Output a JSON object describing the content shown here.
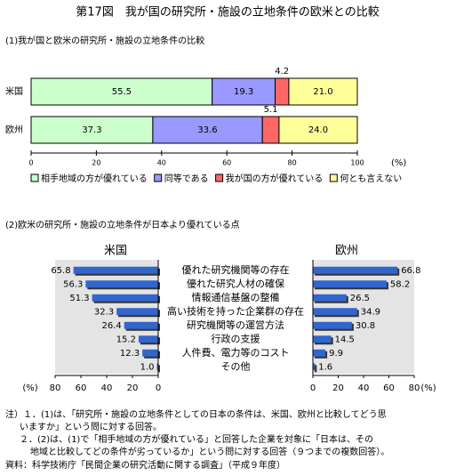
{
  "title": "第17図　我が国の研究所・施設の立地条件の欧米との比較",
  "chart_data": [
    {
      "type": "bar",
      "stacked": true,
      "orientation": "horizontal",
      "subtitle": "(1)我が国と欧米の研究所・施設の立地条件の比較",
      "categories": [
        "米国",
        "欧州"
      ],
      "series": [
        {
          "name": "相手地域の方が優れている",
          "color": "#ccffcc",
          "values": [
            55.5,
            37.3
          ],
          "value_labels": [
            "55.5",
            "37.3"
          ]
        },
        {
          "name": "同等である",
          "color": "#9999ff",
          "values": [
            19.3,
            33.6
          ],
          "value_labels": [
            "19.3",
            "33.6"
          ]
        },
        {
          "name": "我が国の方が優れている",
          "color": "#ff6666",
          "values": [
            4.2,
            5.1
          ],
          "value_labels": [
            "4.2",
            "5.1"
          ]
        },
        {
          "name": "何とも言えない",
          "color": "#ffff99",
          "values": [
            21.0,
            24.0
          ],
          "value_labels": [
            "21.0",
            "24.0"
          ]
        }
      ],
      "xlim": [
        0,
        100
      ],
      "xticks": [
        0,
        20,
        40,
        60,
        80,
        100
      ],
      "x_label": "(%)"
    },
    {
      "type": "butterfly",
      "subtitle": "(2)欧米の研究所・施設の立地条件が日本より優れている点",
      "categories": [
        "優れた研究機関等の存在",
        "優れた研究人材の確保",
        "情報通信基盤の整備",
        "高い技術を持った企業群の存在",
        "研究機関等の運営方法",
        "行政の支援",
        "人件費、電力等のコスト",
        "その他"
      ],
      "series": [
        {
          "name": "米国",
          "color": "#3366cc",
          "reversed": true,
          "values": [
            65.8,
            56.3,
            51.3,
            32.3,
            26.4,
            15.2,
            12.3,
            1.0
          ],
          "value_labels": [
            "65.8",
            "56.3",
            "51.3",
            "32.3",
            "26.4",
            "15.2",
            "12.3",
            "1.0"
          ]
        },
        {
          "name": "欧州",
          "color": "#3366cc",
          "values": [
            66.8,
            58.2,
            26.5,
            34.9,
            30.8,
            14.5,
            9.9,
            1.6
          ],
          "value_labels": [
            "66.8",
            "58.2",
            "26.5",
            "34.9",
            "30.8",
            "14.5",
            "9.9",
            "1.6"
          ]
        }
      ],
      "xlim": [
        0,
        80
      ],
      "xticks": [
        0,
        20,
        40,
        60,
        80
      ],
      "x_label": "(%)"
    }
  ],
  "notes": [
    "注）１．(1)は、「研究所・施設の立地条件としての日本の条件は、米国、欧州と比較してどう思",
    "いますか」という問に対する回答。",
    "２．(2)は、(1)で「相手地域の方が優れている」と回答した企業を対象に「日本は、その",
    "地域と比較してどの条件が劣っているか」という問に対する回答（９つまでの複数回答）。"
  ],
  "source": "資料：科学技術庁「民間企業の研究活動に関する調査」（平成９年度）"
}
